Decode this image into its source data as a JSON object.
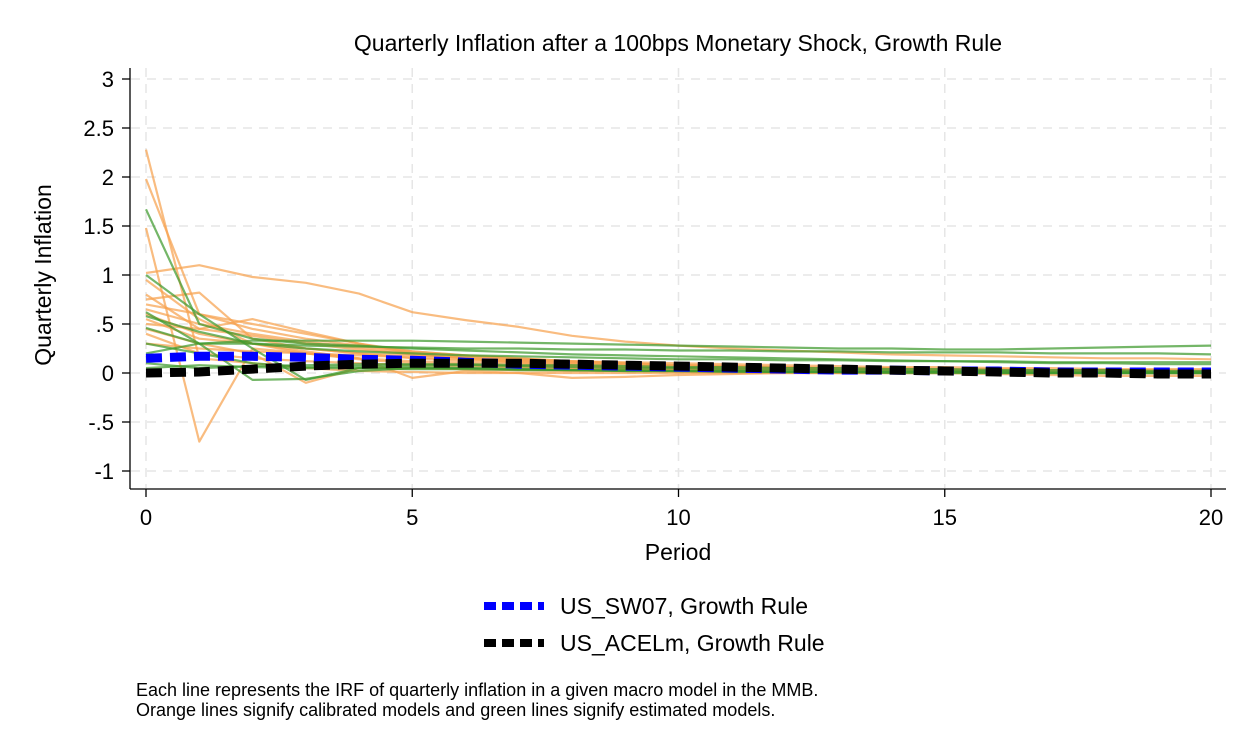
{
  "chart_data": {
    "type": "line",
    "title": "Quarterly Inflation after a 100bps Monetary Shock, Growth Rule",
    "xlabel": "Period",
    "ylabel": "Quarterly Inflation",
    "xlim": [
      0,
      20
    ],
    "ylim": [
      -1,
      3
    ],
    "x_ticks": [
      0,
      5,
      10,
      15,
      20
    ],
    "x_tick_labels": [
      "0",
      "5",
      "10",
      "15",
      "20"
    ],
    "y_ticks": [
      3,
      2.5,
      2,
      1.5,
      1,
      0.5,
      0,
      -0.5,
      -1
    ],
    "y_tick_labels": [
      "3",
      "2.5",
      "2",
      "1.5",
      "1",
      ".5",
      "0",
      "-.5",
      "-1"
    ],
    "grid": true,
    "legend_position": "bottom",
    "colors": {
      "calibrated": "#f7a24f",
      "estimated": "#3e9a2e",
      "us_sw07": "#0000ff",
      "us_acelm": "#000000"
    },
    "x": [
      0,
      1,
      2,
      3,
      4,
      5,
      6,
      7,
      8,
      9,
      10,
      11,
      12,
      13,
      14,
      15,
      16,
      17,
      18,
      19,
      20
    ],
    "calibrated_models": [
      [
        2.28,
        0.15,
        0.1,
        0.05,
        0.02,
        0.01,
        0.0,
        0.0,
        0.0,
        0.0,
        0.0,
        0.0,
        0.0,
        0.0,
        0.0,
        0.0,
        0.0,
        0.0,
        0.0,
        0.0,
        0.0
      ],
      [
        1.98,
        0.6,
        0.5,
        0.4,
        0.3,
        0.22,
        0.18,
        0.15,
        0.12,
        0.1,
        0.08,
        0.07,
        0.06,
        0.05,
        0.04,
        0.03,
        0.03,
        0.02,
        0.02,
        0.02,
        0.01
      ],
      [
        1.48,
        -0.7,
        0.25,
        0.2,
        0.15,
        0.12,
        0.1,
        0.08,
        0.06,
        0.05,
        0.04,
        0.03,
        0.03,
        0.02,
        0.02,
        0.01,
        0.01,
        0.01,
        0.01,
        0.0,
        0.0
      ],
      [
        1.02,
        1.1,
        0.98,
        0.92,
        0.81,
        0.62,
        0.54,
        0.47,
        0.38,
        0.32,
        0.28,
        0.25,
        0.23,
        0.21,
        0.19,
        0.18,
        0.17,
        0.16,
        0.15,
        0.15,
        0.14
      ],
      [
        0.8,
        0.45,
        0.55,
        0.42,
        0.3,
        0.2,
        0.15,
        0.1,
        0.08,
        0.06,
        0.05,
        0.04,
        0.03,
        0.03,
        0.02,
        0.02,
        0.01,
        0.01,
        0.01,
        0.01,
        0.0
      ],
      [
        0.75,
        0.82,
        0.35,
        0.25,
        0.2,
        0.15,
        0.12,
        0.1,
        0.08,
        0.06,
        0.05,
        0.04,
        0.03,
        0.02,
        0.02,
        0.01,
        0.01,
        0.01,
        0.0,
        0.0,
        0.0
      ],
      [
        0.7,
        0.6,
        0.45,
        0.35,
        0.28,
        0.22,
        0.18,
        0.15,
        0.12,
        0.1,
        0.08,
        0.07,
        0.06,
        0.05,
        0.05,
        0.04,
        0.04,
        0.03,
        0.03,
        0.03,
        0.02
      ],
      [
        0.65,
        0.5,
        0.4,
        0.32,
        0.26,
        0.2,
        0.16,
        0.13,
        0.11,
        0.09,
        0.07,
        0.06,
        0.05,
        0.04,
        0.03,
        0.03,
        0.02,
        0.02,
        0.02,
        0.01,
        0.01
      ],
      [
        0.6,
        0.4,
        0.3,
        0.22,
        0.15,
        -0.05,
        0.02,
        0.0,
        -0.05,
        -0.04,
        -0.02,
        -0.01,
        0.0,
        0.0,
        0.0,
        0.0,
        -0.01,
        -0.02,
        -0.03,
        -0.03,
        -0.03
      ],
      [
        0.55,
        0.35,
        0.3,
        0.25,
        0.2,
        0.18,
        0.16,
        0.14,
        0.12,
        0.11,
        0.1,
        0.09,
        0.08,
        0.07,
        0.06,
        0.06,
        0.05,
        0.05,
        0.04,
        0.04,
        0.04
      ],
      [
        0.5,
        0.45,
        0.38,
        0.3,
        0.24,
        0.19,
        0.15,
        0.12,
        0.1,
        0.08,
        0.06,
        0.05,
        0.04,
        0.03,
        0.03,
        0.02,
        0.02,
        0.01,
        0.01,
        0.01,
        0.01
      ],
      [
        0.45,
        0.3,
        0.2,
        -0.1,
        0.05,
        0.05,
        0.04,
        0.03,
        0.02,
        0.02,
        0.01,
        0.01,
        0.01,
        0.0,
        0.0,
        0.0,
        0.0,
        0.0,
        0.0,
        0.0,
        0.0
      ],
      [
        0.4,
        0.2,
        0.15,
        0.12,
        0.1,
        0.08,
        0.07,
        0.06,
        0.05,
        0.04,
        0.03,
        0.03,
        0.02,
        0.02,
        0.02,
        0.01,
        0.01,
        0.01,
        0.01,
        0.0,
        0.0
      ],
      [
        0.3,
        0.25,
        0.22,
        0.2,
        0.18,
        0.16,
        0.14,
        0.12,
        0.1,
        0.09,
        0.08,
        0.07,
        0.06,
        0.05,
        0.05,
        0.04,
        0.04,
        0.03,
        0.03,
        0.03,
        0.02
      ],
      [
        0.95,
        0.55,
        0.3,
        0.2,
        0.14,
        0.1,
        0.08,
        0.06,
        0.05,
        0.04,
        0.03,
        0.02,
        0.02,
        0.01,
        0.01,
        0.01,
        0.0,
        0.0,
        0.0,
        0.0,
        0.0
      ]
    ],
    "estimated_models": [
      [
        1.67,
        0.5,
        0.35,
        0.3,
        0.28,
        0.25,
        0.23,
        0.21,
        0.19,
        0.18,
        0.17,
        0.16,
        0.15,
        0.14,
        0.13,
        0.12,
        0.11,
        0.1,
        0.1,
        0.09,
        0.09
      ],
      [
        1.0,
        0.6,
        0.25,
        -0.07,
        0.05,
        0.06,
        0.05,
        0.04,
        0.03,
        0.02,
        0.02,
        0.01,
        0.01,
        0.01,
        0.0,
        0.0,
        0.0,
        0.0,
        0.0,
        0.0,
        0.0
      ],
      [
        0.62,
        0.3,
        0.33,
        0.33,
        0.33,
        0.33,
        0.32,
        0.31,
        0.3,
        0.29,
        0.28,
        0.27,
        0.26,
        0.25,
        0.25,
        0.24,
        0.24,
        0.25,
        0.26,
        0.27,
        0.28
      ],
      [
        0.58,
        0.42,
        0.3,
        0.25,
        0.22,
        0.2,
        0.18,
        0.17,
        0.16,
        0.15,
        0.14,
        0.14,
        0.13,
        0.13,
        0.12,
        0.12,
        0.12,
        0.11,
        0.11,
        0.11,
        0.11
      ],
      [
        0.46,
        0.3,
        -0.07,
        -0.06,
        0.02,
        0.05,
        0.05,
        0.04,
        0.03,
        0.03,
        0.02,
        0.02,
        0.01,
        0.01,
        0.01,
        0.01,
        0.0,
        0.0,
        0.0,
        0.0,
        0.0
      ],
      [
        0.3,
        0.2,
        0.1,
        0.06,
        0.07,
        0.08,
        0.08,
        0.07,
        0.06,
        0.05,
        0.05,
        0.04,
        0.03,
        0.03,
        0.02,
        0.02,
        0.02,
        0.01,
        0.01,
        0.01,
        0.01
      ],
      [
        0.2,
        0.3,
        0.3,
        0.28,
        0.27,
        0.26,
        0.25,
        0.25,
        0.24,
        0.24,
        0.23,
        0.23,
        0.22,
        0.22,
        0.21,
        0.21,
        0.21,
        0.2,
        0.2,
        0.2,
        0.19
      ],
      [
        0.1,
        0.05,
        0.07,
        0.08,
        0.09,
        0.09,
        0.09,
        0.08,
        0.08,
        0.07,
        0.06,
        0.06,
        0.05,
        0.05,
        0.04,
        0.04,
        0.03,
        0.03,
        0.03,
        0.02,
        0.02
      ],
      [
        0.05,
        0.08,
        0.06,
        0.05,
        0.05,
        0.04,
        0.04,
        0.03,
        0.03,
        0.02,
        0.02,
        0.02,
        0.01,
        0.01,
        0.01,
        0.01,
        0.01,
        0.0,
        0.0,
        0.0,
        0.0
      ]
    ],
    "series": [
      {
        "name": "US_SW07, Growth Rule",
        "values": [
          0.15,
          0.17,
          0.17,
          0.16,
          0.14,
          0.13,
          0.11,
          0.09,
          0.08,
          0.07,
          0.06,
          0.05,
          0.04,
          0.03,
          0.03,
          0.02,
          0.02,
          0.01,
          0.01,
          0.01,
          0.01
        ]
      },
      {
        "name": "US_ACELm, Growth Rule",
        "values": [
          0.0,
          0.01,
          0.04,
          0.07,
          0.09,
          0.1,
          0.1,
          0.1,
          0.09,
          0.08,
          0.07,
          0.06,
          0.05,
          0.04,
          0.03,
          0.02,
          0.01,
          0.0,
          0.0,
          -0.01,
          -0.01
        ]
      }
    ]
  },
  "note": {
    "line1": "Each line represents the IRF of quarterly inflation in a given macro model in the MMB.",
    "line2": "Orange lines signify calibrated models and green lines signify estimated models."
  }
}
